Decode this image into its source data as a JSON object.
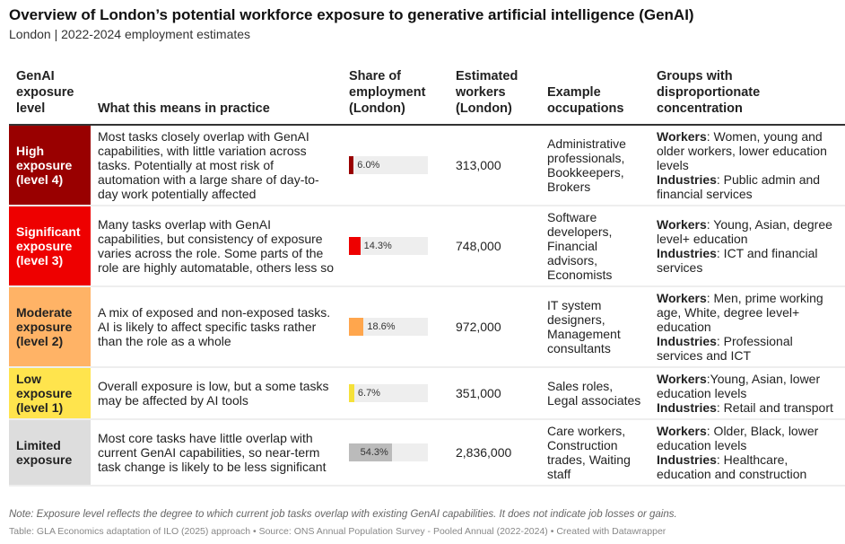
{
  "title": "Overview of London’s potential workforce exposure to generative artificial intelligence (GenAI)",
  "subtitle": "London | 2022-2024 employment estimates",
  "headers": [
    "GenAI exposure level",
    "What this means in practice",
    "Share of employment (London)",
    "Estimated workers (London)",
    "Example occupations",
    "Groups with disproportionate concentration"
  ],
  "chart_data": {
    "type": "table",
    "xlim": [
      0,
      100
    ],
    "rows": [
      {
        "level": "High exposure (level 4)",
        "color": "#990000",
        "text_color": "#ffffff",
        "meaning": "Most tasks closely overlap with GenAI capabilities, with little variation across tasks. Potentially at most risk of automation with a large share of day-to-day work potentially affected",
        "share": 6.0,
        "share_label": "6.0%",
        "workers": "313,000",
        "occupations": "Administrative professionals, Bookkeepers, Brokers",
        "workers_groups": ": Women, young and older workers, lower education levels",
        "industries": ": Public admin and financial services"
      },
      {
        "level": "Significant exposure (level 3)",
        "color": "#ee0000",
        "text_color": "#ffffff",
        "meaning": "Many tasks overlap with GenAI capabilities, but consistency of exposure varies across the role. Some parts of the role are highly automatable, others less so",
        "share": 14.3,
        "share_label": "14.3%",
        "workers": "748,000",
        "occupations": "Software developers, Financial advisors, Economists",
        "workers_groups": ": Young, Asian, degree level+ education",
        "industries": ": ICT and financial services"
      },
      {
        "level": "Moderate exposure (level 2)",
        "color": "#ffb366",
        "bar_color": "#ffa64d",
        "text_color": "#222222",
        "meaning": "A mix of exposed and non-exposed tasks. AI is likely to affect specific tasks rather than the role as a whole",
        "share": 18.6,
        "share_label": "18.6%",
        "workers": "972,000",
        "occupations": "IT system designers, Management consultants",
        "workers_groups": ": Men, prime working age, White, degree level+ education",
        "industries": ": Professional services and ICT"
      },
      {
        "level": "Low exposure (level 1)",
        "color": "#ffe44d",
        "bar_color": "#f5e13a",
        "text_color": "#222222",
        "meaning": "Overall exposure is low, but a some tasks may be affected by AI tools",
        "share": 6.7,
        "share_label": "6.7%",
        "workers": "351,000",
        "occupations": "Sales roles, Legal associates",
        "workers_groups": ":Young, Asian, lower education levels",
        "industries": ": Retail and transport"
      },
      {
        "level": "Limited exposure",
        "color": "#dddddd",
        "bar_color": "#bbbbbb",
        "text_color": "#222222",
        "meaning": "Most core tasks have little overlap with current GenAI capabilities, so near-term task change is likely to be less significant",
        "share": 54.3,
        "share_label": "54.3%",
        "workers": "2,836,000",
        "occupations": "Care workers, Construction trades, Waiting staff",
        "workers_groups": ": Older, Black, lower education levels",
        "industries": ": Healthcare, education and construction"
      }
    ]
  },
  "labels": {
    "workers": "Workers",
    "industries": "Industries"
  },
  "note": "Note: Exposure level reflects the degree to which current job tasks overlap with existing GenAI capabilities. It does not indicate job losses or gains.",
  "source": "Table: GLA Economics adaptation of ILO (2025) approach • Source: ONS Annual Population Survey - Pooled Annual (2022-2024) • Created with Datawrapper"
}
